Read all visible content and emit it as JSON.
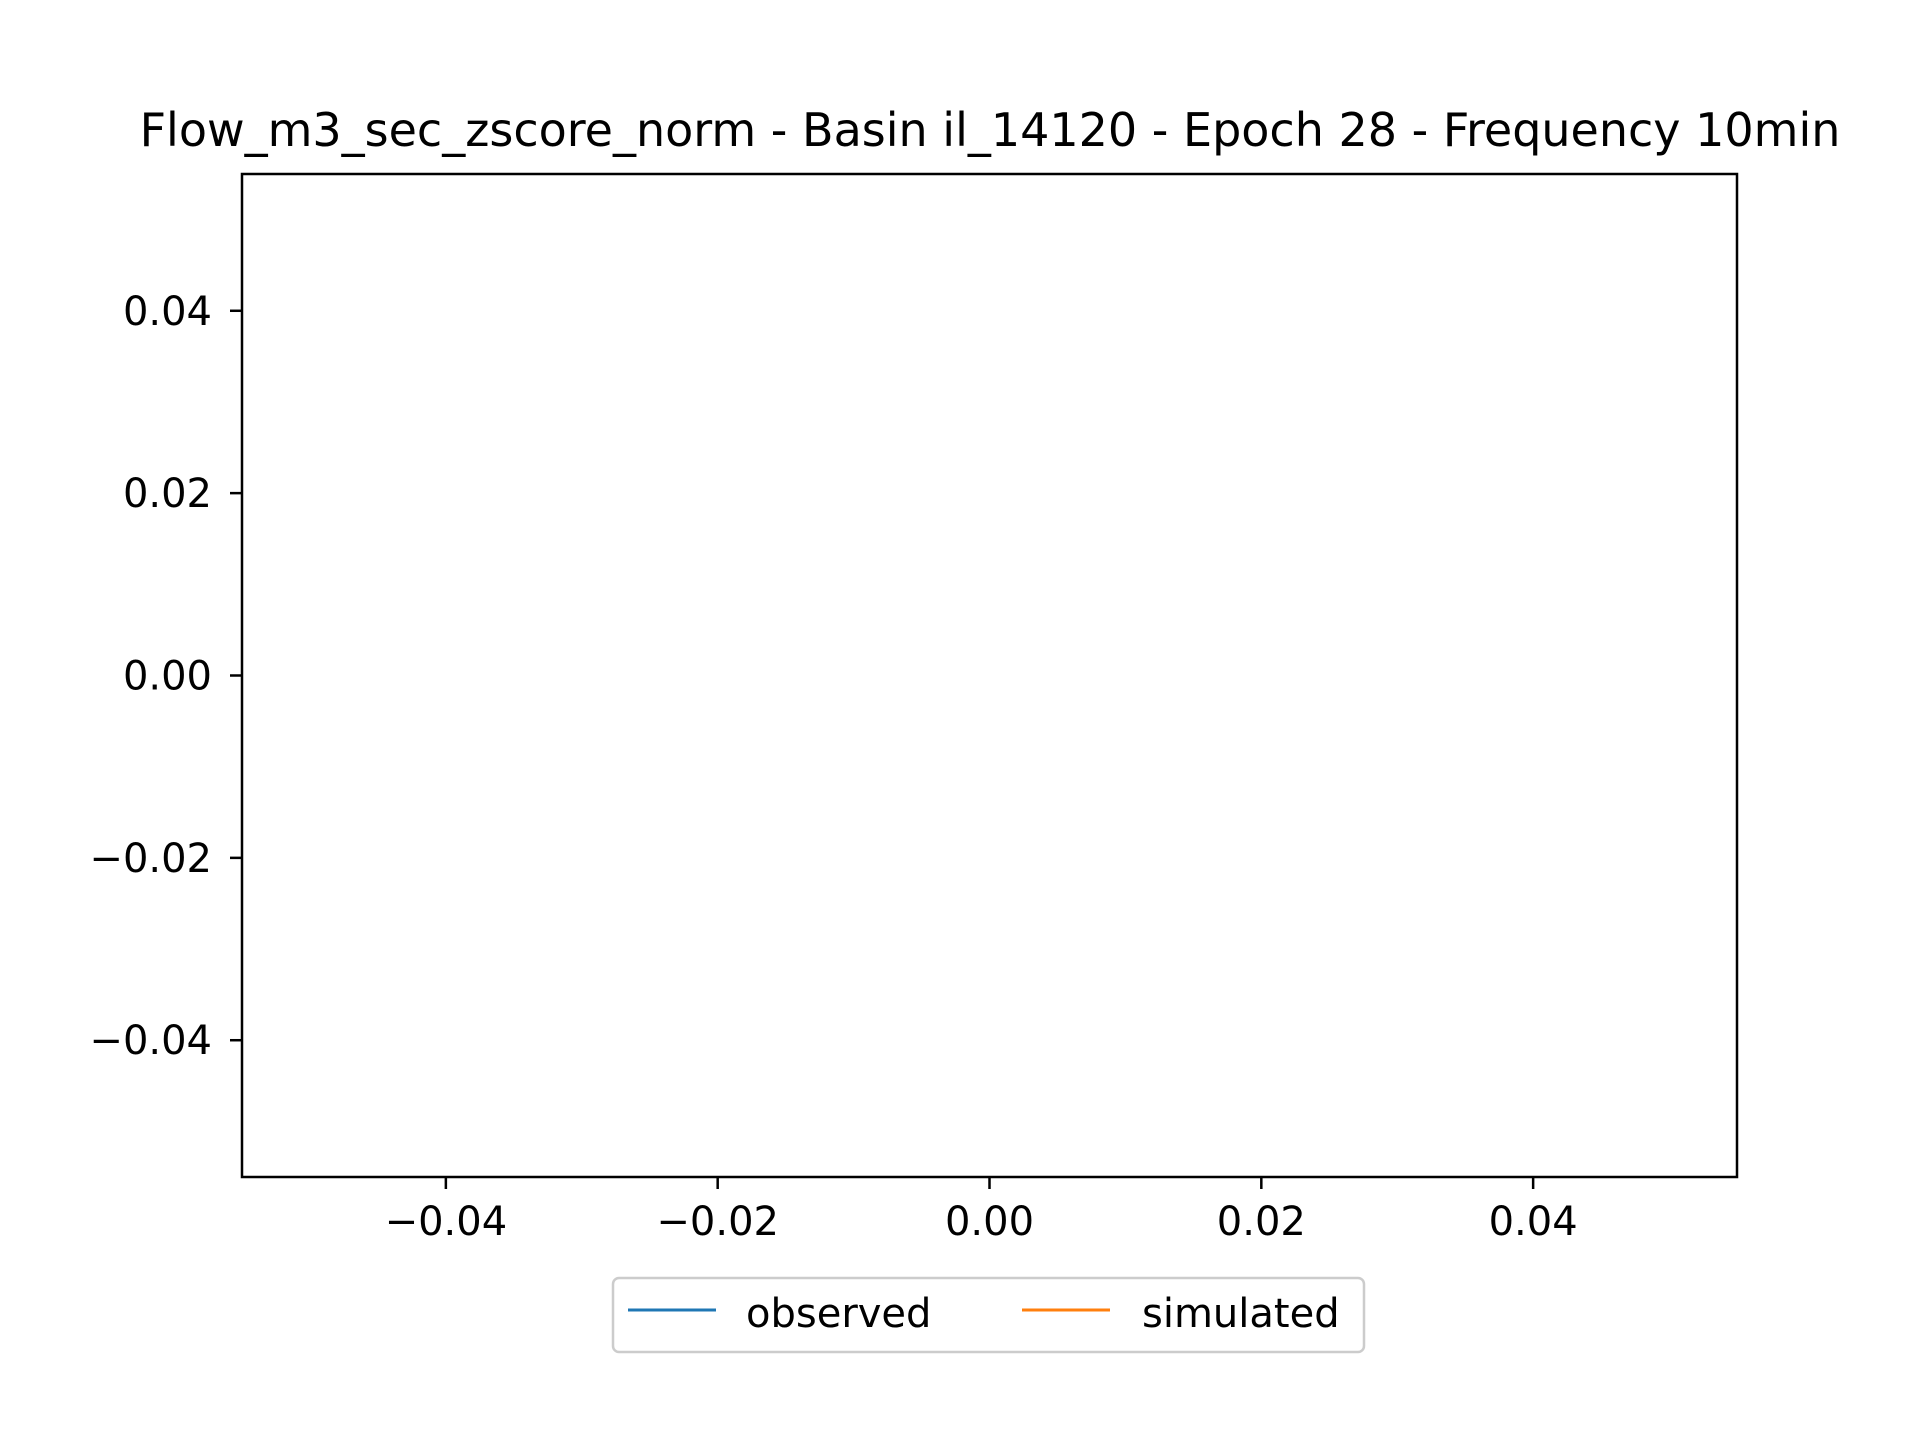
{
  "chart_data": {
    "type": "line",
    "title": "Flow_m3_sec_zscore_norm - Basin il_14120 - Epoch 28 - Frequency 10min",
    "xlabel": "",
    "ylabel": "",
    "xlim": [
      -0.055,
      0.055
    ],
    "ylim": [
      -0.055,
      0.055
    ],
    "x_ticks": [
      -0.04,
      -0.02,
      0.0,
      0.02,
      0.04
    ],
    "y_ticks": [
      -0.04,
      -0.02,
      0.0,
      0.02,
      0.04
    ],
    "x_tick_labels": [
      "−0.04",
      "−0.02",
      "0.00",
      "0.02",
      "0.04"
    ],
    "y_tick_labels": [
      "−0.04",
      "−0.02",
      "0.00",
      "0.02",
      "0.04"
    ],
    "grid": false,
    "legend_placement": "bottom-center",
    "series": [
      {
        "name": "observed",
        "color": "#1f77b4",
        "x": [],
        "y": []
      },
      {
        "name": "simulated",
        "color": "#ff7f0e",
        "x": [],
        "y": []
      }
    ]
  }
}
